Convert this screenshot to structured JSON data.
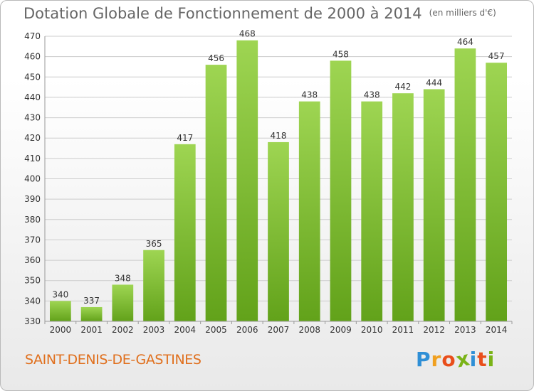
{
  "chart_data": {
    "type": "bar",
    "title": "Dotation Globale de Fonctionnement de 2000 à 2014",
    "unit_note": "(en milliers d'€)",
    "categories": [
      "2000",
      "2001",
      "2002",
      "2003",
      "2004",
      "2005",
      "2006",
      "2007",
      "2008",
      "2009",
      "2010",
      "2011",
      "2012",
      "2013",
      "2014"
    ],
    "values": [
      340,
      337,
      348,
      365,
      417,
      456,
      468,
      418,
      438,
      458,
      438,
      442,
      444,
      464,
      457
    ],
    "ylim": [
      330,
      470
    ],
    "yticks": [
      330,
      340,
      350,
      360,
      370,
      380,
      390,
      400,
      410,
      420,
      430,
      440,
      450,
      460,
      470
    ],
    "xlabel": "",
    "ylabel": "",
    "grid": true,
    "bar_color_top": "#9ed552",
    "bar_color_bottom": "#62a21a"
  },
  "footer": {
    "commune": "SAINT-DENIS-DE-GASTINES",
    "logo_letters": [
      "P",
      "r",
      "o",
      "x",
      "i",
      "t",
      "i"
    ],
    "logo_colors": [
      "#2f8fd6",
      "#f0a020",
      "#e94e1b",
      "#7ab317",
      "#2f8fd6",
      "#e94e1b",
      "#7ab317"
    ]
  },
  "colors": {
    "title": "#666666",
    "commune": "#e0701e",
    "axis_text": "#333333",
    "grid": "#cccccc"
  }
}
